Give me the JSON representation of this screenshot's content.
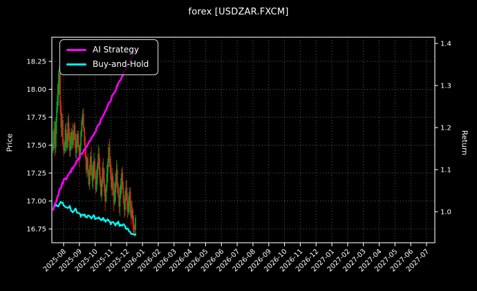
{
  "figure": {
    "title": "forex [USDZAR.FXCM]"
  },
  "chart_data": {
    "type": "candlestick+line",
    "title": "forex [USDZAR.FXCM]",
    "background_color": "#000000",
    "text_color": "#ffffff",
    "grid": {
      "visible": true,
      "style": "dotted",
      "color": "rgba(255,255,255,0.38)"
    },
    "left_axis": {
      "label": "Price",
      "tick_labels": [
        "16.75",
        "17.00",
        "17.25",
        "17.50",
        "17.75",
        "18.00",
        "18.25"
      ],
      "tick_values": [
        16.75,
        17.0,
        17.25,
        17.5,
        17.75,
        18.0,
        18.25
      ],
      "range": [
        16.63,
        18.47
      ]
    },
    "right_axis": {
      "label": "Return",
      "tick_labels": [
        "1.0",
        "1.1",
        "1.2",
        "1.3",
        "1.4"
      ],
      "tick_values": [
        1.0,
        1.1,
        1.2,
        1.3,
        1.4
      ],
      "range": [
        0.926,
        1.415
      ]
    },
    "x_axis": {
      "tick_labels": [
        "2025-08",
        "2025-09",
        "2025-10",
        "2025-11",
        "2025-12",
        "2026-01",
        "2026-02",
        "2026-03",
        "2026-04",
        "2026-05",
        "2026-06",
        "2026-07",
        "2026-08",
        "2026-09",
        "2026-10",
        "2026-11",
        "2026-12",
        "2027-01",
        "2027-02",
        "2027-03",
        "2027-04",
        "2027-05",
        "2027-06",
        "2027-07"
      ],
      "label_rotation_deg": 45
    },
    "legend": {
      "position": "upper-left",
      "items": [
        {
          "label": "AI Strategy",
          "color": "#ff00ff"
        },
        {
          "label": "Buy-and-Hold",
          "color": "#00ffff"
        }
      ]
    },
    "candles": {
      "axis": "price",
      "up_color": "#00a524",
      "down_color": "#e02418",
      "first_open": 17.45,
      "closes": [
        17.52,
        17.65,
        17.48,
        17.71,
        17.82,
        17.95,
        18.06,
        18.14,
        17.85,
        17.66,
        17.72,
        17.52,
        17.45,
        17.52,
        17.64,
        17.48,
        17.56,
        17.7,
        17.58,
        17.45,
        17.53,
        17.62,
        17.5,
        17.58,
        17.68,
        17.55,
        17.43,
        17.52,
        17.6,
        17.48,
        17.38,
        17.5,
        17.62,
        17.72,
        17.78,
        17.65,
        17.52,
        17.4,
        17.28,
        17.38,
        17.25,
        17.15,
        17.28,
        17.4,
        17.3,
        17.18,
        17.28,
        17.36,
        17.22,
        17.1,
        17.2,
        17.32,
        17.42,
        17.3,
        17.16,
        17.05,
        17.18,
        17.3,
        17.2,
        17.08,
        17.0,
        17.12,
        17.25,
        17.35,
        17.48,
        17.38,
        17.25,
        17.12,
        17.22,
        17.1,
        16.98,
        17.08,
        17.18,
        17.28,
        17.15,
        17.05,
        16.95,
        17.05,
        17.15,
        17.25,
        17.12,
        17.0,
        16.92,
        17.02,
        17.12,
        17.0,
        16.9,
        16.98,
        17.08,
        16.96,
        16.85,
        16.92,
        16.8,
        16.76,
        16.74,
        16.85
      ]
    },
    "series": [
      {
        "name": "AI Strategy",
        "axis": "return",
        "color": "#ff00ff",
        "waypoints": [
          [
            0,
            1.005
          ],
          [
            0.03,
            1.022
          ],
          [
            0.06,
            1.04
          ],
          [
            0.1,
            1.062
          ],
          [
            0.13,
            1.075
          ],
          [
            0.17,
            1.082
          ],
          [
            0.2,
            1.09
          ],
          [
            0.24,
            1.105
          ],
          [
            0.28,
            1.118
          ],
          [
            0.33,
            1.132
          ],
          [
            0.38,
            1.147
          ],
          [
            0.43,
            1.163
          ],
          [
            0.48,
            1.18
          ],
          [
            0.53,
            1.198
          ],
          [
            0.58,
            1.218
          ],
          [
            0.63,
            1.238
          ],
          [
            0.68,
            1.258
          ],
          [
            0.73,
            1.278
          ],
          [
            0.78,
            1.3
          ],
          [
            0.83,
            1.32
          ],
          [
            0.88,
            1.338
          ],
          [
            0.93,
            1.357
          ],
          [
            0.97,
            1.372
          ],
          [
            1.0,
            1.382
          ]
        ]
      },
      {
        "name": "Buy-and-Hold",
        "axis": "return",
        "color": "#00ffff",
        "waypoints": [
          [
            0,
            1.008
          ],
          [
            0.02,
            1.016
          ],
          [
            0.05,
            1.01
          ],
          [
            0.09,
            1.026
          ],
          [
            0.11,
            1.022
          ],
          [
            0.13,
            1.015
          ],
          [
            0.15,
            1.01
          ],
          [
            0.17,
            1.006
          ],
          [
            0.2,
            1.011
          ],
          [
            0.23,
            1.001
          ],
          [
            0.27,
            1.006
          ],
          [
            0.3,
            0.998
          ],
          [
            0.33,
            0.99
          ],
          [
            0.36,
            0.994
          ],
          [
            0.4,
            0.987
          ],
          [
            0.43,
            0.992
          ],
          [
            0.46,
            0.984
          ],
          [
            0.49,
            0.989
          ],
          [
            0.52,
            0.981
          ],
          [
            0.55,
            0.986
          ],
          [
            0.58,
            0.978
          ],
          [
            0.61,
            0.983
          ],
          [
            0.64,
            0.975
          ],
          [
            0.67,
            0.98
          ],
          [
            0.7,
            0.971
          ],
          [
            0.73,
            0.977
          ],
          [
            0.76,
            0.968
          ],
          [
            0.79,
            0.974
          ],
          [
            0.82,
            0.965
          ],
          [
            0.85,
            0.97
          ],
          [
            0.88,
            0.961
          ],
          [
            0.91,
            0.957
          ],
          [
            0.94,
            0.949
          ],
          [
            0.97,
            0.944
          ],
          [
            1.0,
            0.947
          ]
        ]
      }
    ]
  }
}
